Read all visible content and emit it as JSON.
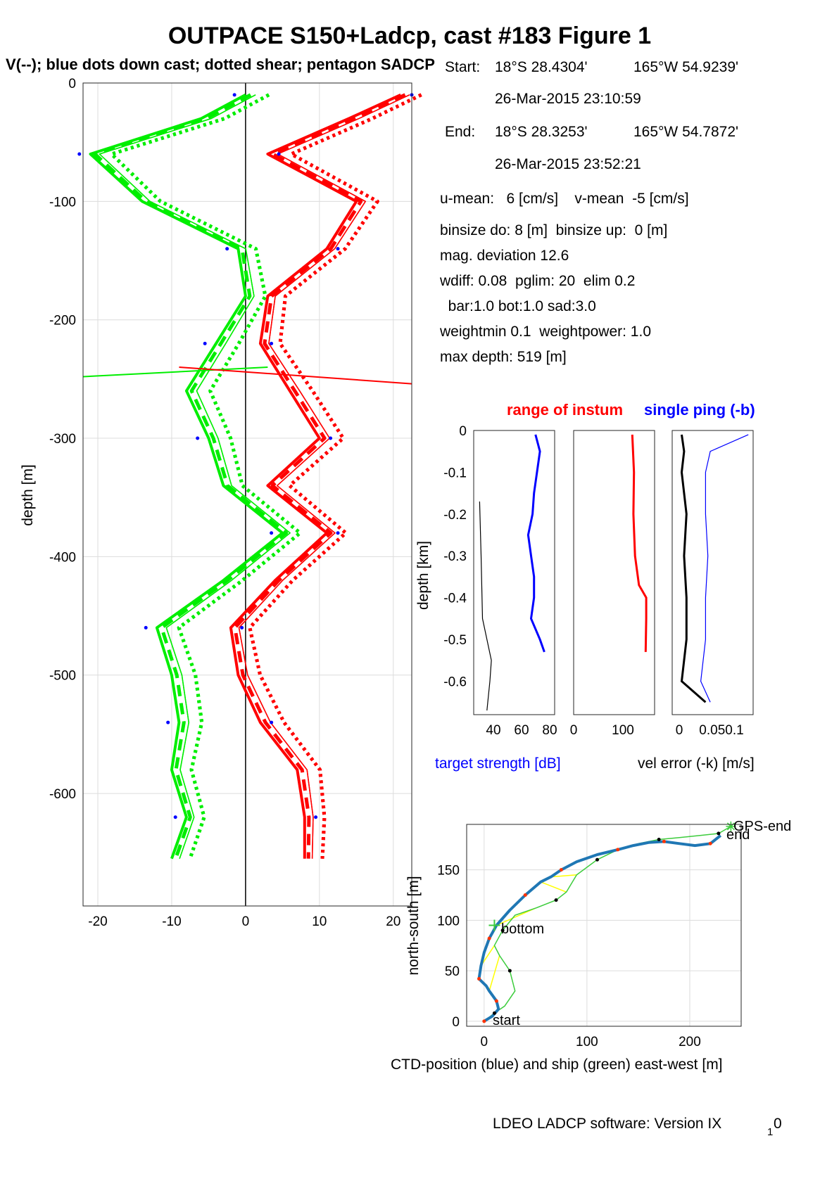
{
  "title": "OUTPACE S150+Ladcp, cast #183  Figure 1",
  "subtitle": "V(--); blue dots down cast; dotted shear; pentagon SADCP",
  "info": {
    "start_label": "Start:",
    "start_lat": "18°S 28.4304'",
    "start_lon": "165°W 54.9239'",
    "start_time": "26-Mar-2015 23:10:59",
    "end_label": "End:",
    "end_lat": "18°S 28.3253'",
    "end_lon": "165°W 54.7872'",
    "end_time": "26-Mar-2015 23:52:21",
    "lines": [
      "u-mean:   6 [cm/s]    v-mean  -5 [cm/s]",
      "binsize do: 8 [m]  binsize up:  0 [m]",
      "mag. deviation 12.6",
      "wdiff: 0.08  pglim: 20  elim 0.2",
      "  bar:1.0 bot:1.0 sad:3.0",
      "weightmin 0.1  weightpower: 1.0",
      "max depth: 519 [m]"
    ]
  },
  "footer": "LDEO LADCP software: Version IX",
  "footer_sub": "1",
  "footer_tail": "0",
  "colors": {
    "u": "#ff0000",
    "v": "#00ee00",
    "dots": "#0000ff",
    "ctd": "#1f77b4",
    "ship": "#3ccc3c",
    "link": "#ffff00"
  },
  "chart_data": [
    {
      "type": "line",
      "ylabel": "depth [m]",
      "xlim": [
        -22,
        22.5
      ],
      "ylim": [
        -695,
        0
      ],
      "xticks": [
        "-20",
        "-10",
        "0",
        "10",
        "20"
      ],
      "yticks": [
        "0",
        "-100",
        "-200",
        "-300",
        "-400",
        "-500",
        "-600"
      ],
      "grid": true,
      "depth": [
        -10,
        -30,
        -60,
        -100,
        -140,
        -180,
        -220,
        -260,
        -300,
        -340,
        -380,
        -420,
        -460,
        -500,
        -540,
        -580,
        -620,
        -655
      ],
      "series": [
        {
          "name": "u",
          "color": "#ff0000",
          "values": [
            21,
            14,
            3,
            15,
            11,
            3,
            2,
            6,
            10,
            3,
            11,
            4,
            -2,
            -1,
            2,
            7,
            8,
            8
          ]
        },
        {
          "name": "v",
          "color": "#00ee00",
          "values": [
            0,
            -6,
            -21,
            -14,
            -1,
            0,
            -4,
            -8,
            -5,
            -3,
            5,
            -3,
            -12,
            -10,
            -9,
            -10,
            -8,
            -10
          ]
        }
      ],
      "crossing_line_depth": [
        -248,
        -254
      ]
    },
    {
      "type": "line",
      "title": "range of instumsingle ping (-b)",
      "title_red": "range of instum",
      "title_blue": "single ping (-b)",
      "ylabel": "depth [km]",
      "yticks": [
        "0",
        "-0.1",
        "-0.2",
        "-0.3",
        "-0.4",
        "-0.5",
        "-0.6"
      ],
      "panels": [
        {
          "xlim": [
            25,
            80
          ],
          "xticks": [
            "40",
            "60",
            "80"
          ],
          "xlabel": "target strength [dB]",
          "depth": [
            -0.01,
            -0.05,
            -0.1,
            -0.15,
            -0.2,
            -0.25,
            -0.3,
            -0.35,
            -0.4,
            -0.45,
            -0.5,
            -0.53
          ],
          "blue": [
            67,
            70,
            68,
            66,
            65,
            62,
            64,
            66,
            66,
            64,
            70,
            73
          ],
          "black_depth": [
            -0.17,
            -0.3,
            -0.45,
            -0.5,
            -0.55,
            -0.6,
            -0.67
          ],
          "black": [
            29,
            30,
            31,
            34,
            37,
            36,
            34
          ]
        },
        {
          "xlim": [
            -5,
            140
          ],
          "xticks": [
            "0",
            "100"
          ],
          "depth": [
            -0.01,
            -0.1,
            -0.2,
            -0.3,
            -0.37,
            -0.4,
            -0.45,
            -0.53
          ],
          "red": [
            100,
            103,
            102,
            105,
            112,
            125,
            125,
            124
          ]
        },
        {
          "xlim": [
            0,
            0.17
          ],
          "xticks": [
            "0",
            "0.050.1"
          ],
          "xlabel": "vel error (-k) [m/s]",
          "depth": [
            -0.01,
            -0.05,
            -0.1,
            -0.2,
            -0.3,
            -0.4,
            -0.5,
            -0.6,
            -0.65
          ],
          "black": [
            0.02,
            0.025,
            0.02,
            0.03,
            0.025,
            0.03,
            0.03,
            0.02,
            0.07
          ],
          "blue": [
            0.16,
            0.08,
            0.07,
            0.07,
            0.075,
            0.07,
            0.07,
            0.06,
            0.08
          ]
        }
      ]
    },
    {
      "type": "line",
      "xlabel": "CTD-position (blue) and ship (green) east-west [m]",
      "ylabel": "north-south [m]",
      "xlim": [
        -17,
        250
      ],
      "ylim": [
        -5,
        195
      ],
      "xticks": [
        "0",
        "100",
        "200"
      ],
      "yticks": [
        "0",
        "50",
        "100",
        "150"
      ],
      "grid": true,
      "labels": {
        "start": "start",
        "bottom": "bottom",
        "end": "end",
        "gps_end": "GPS-end"
      },
      "ctd": {
        "x": [
          0,
          8,
          14,
          12,
          5,
          2,
          -5,
          -3,
          0,
          5,
          12,
          25,
          40,
          55,
          65,
          75,
          90,
          110,
          130,
          145,
          160,
          175,
          190,
          205,
          220,
          230
        ],
        "y": [
          0,
          5,
          12,
          20,
          30,
          35,
          42,
          55,
          68,
          82,
          95,
          110,
          125,
          138,
          143,
          150,
          158,
          165,
          170,
          174,
          177,
          178,
          176,
          174,
          176,
          184
        ]
      },
      "ship": {
        "x": [
          0,
          10,
          20,
          30,
          25,
          15,
          10,
          18,
          30,
          50,
          70,
          80,
          90,
          110,
          130,
          150,
          170,
          190,
          210,
          228,
          240
        ],
        "y": [
          0,
          8,
          15,
          30,
          50,
          65,
          75,
          90,
          105,
          112,
          120,
          128,
          145,
          160,
          170,
          176,
          180,
          182,
          184,
          186,
          193
        ]
      }
    }
  ]
}
